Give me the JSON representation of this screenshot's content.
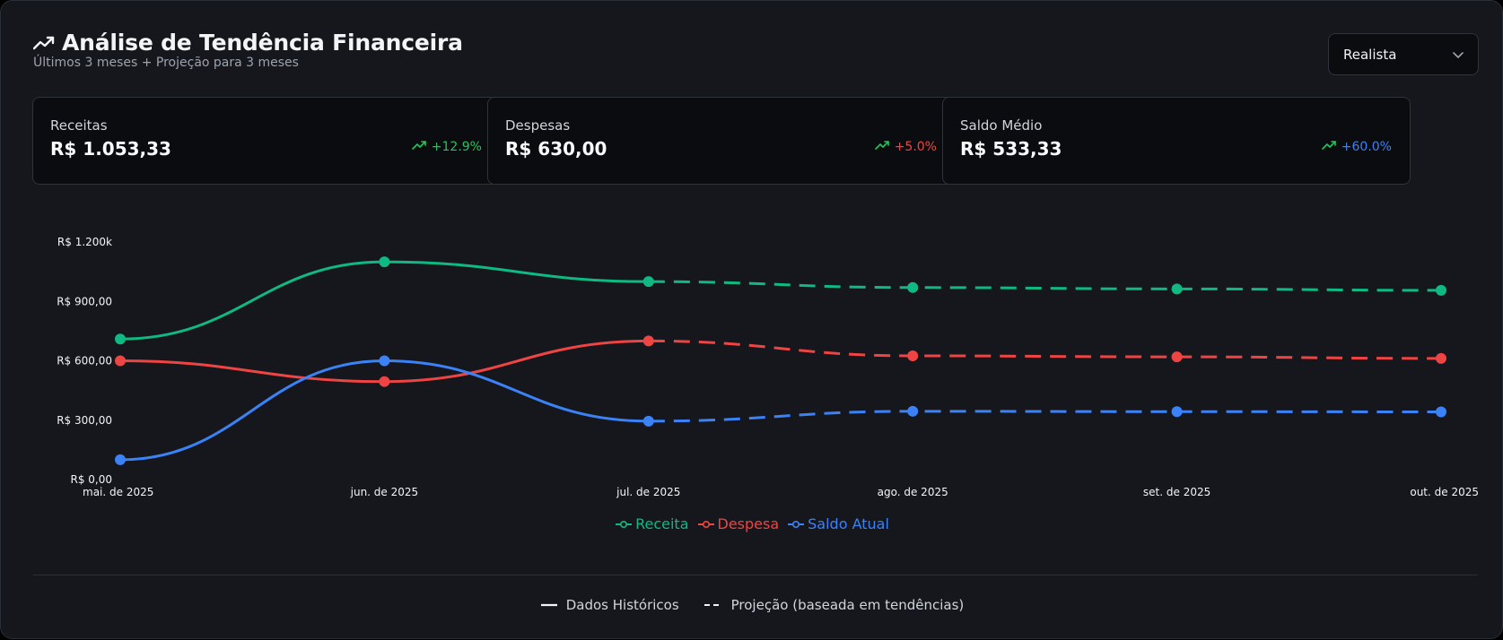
{
  "header": {
    "title": "Análise de Tendência Financeira",
    "subtitle": "Últimos 3 meses + Projeção para 3 meses",
    "icon": "trending-up-icon"
  },
  "scenario_select": {
    "value": "Realista",
    "icon": "chevron-down-icon"
  },
  "cards": [
    {
      "label": "Receitas",
      "value": "R$ 1.053,33",
      "trend": "+12.9%",
      "trend_color": "#22c55e",
      "icon_color": "#22c55e"
    },
    {
      "label": "Despesas",
      "value": "R$ 630,00",
      "trend": "+5.0%",
      "trend_color": "#ef4444",
      "icon_color": "#22c55e"
    },
    {
      "label": "Saldo Médio",
      "value": "R$ 533,33",
      "trend": "+60.0%",
      "trend_color": "#3b82f6",
      "icon_color": "#22c55e"
    }
  ],
  "legend": [
    {
      "label": "Receita",
      "color": "#10b981"
    },
    {
      "label": "Despesa",
      "color": "#ef4444"
    },
    {
      "label": "Saldo Atual",
      "color": "#3b82f6"
    }
  ],
  "footer": {
    "historical_label": "Dados Históricos",
    "projection_label": "Projeção (baseada em tendências)"
  },
  "chart_data": {
    "type": "line",
    "x": [
      "mai. de 2025",
      "jun. de 2025",
      "jul. de 2025",
      "ago. de 2025",
      "set. de 2025",
      "out. de 2025"
    ],
    "y_ticks": [
      "R$ 0,00",
      "R$ 300,00",
      "R$ 600,00",
      "R$ 900,00",
      "R$ 1.200k"
    ],
    "ylim": [
      0,
      1200
    ],
    "historical_count": 3,
    "series": [
      {
        "name": "Receita",
        "color": "#10b981",
        "values": [
          710,
          1100,
          1000,
          970,
          963,
          956
        ]
      },
      {
        "name": "Despesa",
        "color": "#ef4444",
        "values": [
          600,
          495,
          700,
          625,
          620,
          612
        ]
      },
      {
        "name": "Saldo Atual",
        "color": "#3b82f6",
        "values": [
          100,
          600,
          295,
          345,
          343,
          342
        ]
      }
    ]
  }
}
